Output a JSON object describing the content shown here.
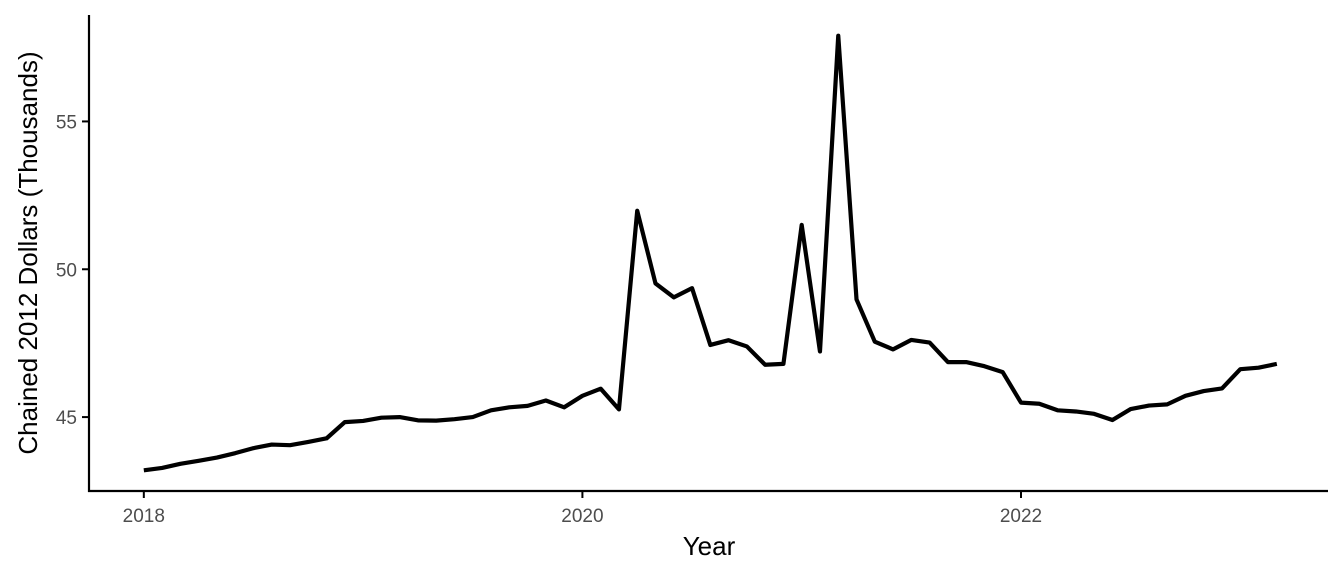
{
  "chart_data": {
    "type": "line",
    "title": "",
    "xlabel": "Year",
    "ylabel": "Chained 2012 Dollars (Thousands)",
    "x_ticks": [
      {
        "value": 2018,
        "label": "2018"
      },
      {
        "value": 2020,
        "label": "2020"
      },
      {
        "value": 2022,
        "label": "2022"
      }
    ],
    "y_ticks": [
      {
        "value": 45,
        "label": "45"
      },
      {
        "value": 50,
        "label": "50"
      },
      {
        "value": 55,
        "label": "55"
      }
    ],
    "xlim": [
      2017.75,
      2023.4
    ],
    "ylim": [
      42.5,
      58.6
    ],
    "grid": false,
    "legend": "none",
    "line_color": "#000000",
    "series": [
      {
        "x": [
          "2018-01",
          "2018-02",
          "2018-03",
          "2018-04",
          "2018-05",
          "2018-06",
          "2018-07",
          "2018-08",
          "2018-09",
          "2018-10",
          "2018-11",
          "2018-12",
          "2019-01",
          "2019-02",
          "2019-03",
          "2019-04",
          "2019-05",
          "2019-06",
          "2019-07",
          "2019-08",
          "2019-09",
          "2019-10",
          "2019-11",
          "2019-12",
          "2020-01",
          "2020-02",
          "2020-03",
          "2020-04",
          "2020-05",
          "2020-06",
          "2020-07",
          "2020-08",
          "2020-09",
          "2020-10",
          "2020-11",
          "2020-12",
          "2021-01",
          "2021-02",
          "2021-03",
          "2021-04",
          "2021-05",
          "2021-06",
          "2021-07",
          "2021-08",
          "2021-09",
          "2021-10",
          "2021-11",
          "2021-12",
          "2022-01",
          "2022-02",
          "2022-03",
          "2022-04",
          "2022-05",
          "2022-06",
          "2022-07",
          "2022-08",
          "2022-09",
          "2022-10",
          "2022-11",
          "2022-12",
          "2023-01",
          "2023-02",
          "2023-03"
        ],
        "values": [
          43.2,
          43.28,
          43.42,
          43.52,
          43.63,
          43.78,
          43.95,
          44.07,
          44.05,
          44.16,
          44.28,
          44.83,
          44.87,
          44.98,
          45.0,
          44.89,
          44.88,
          44.93,
          45.0,
          45.23,
          45.33,
          45.38,
          45.56,
          45.33,
          45.72,
          45.96,
          45.26,
          51.98,
          49.52,
          49.05,
          49.36,
          47.44,
          47.6,
          47.39,
          46.77,
          46.8,
          51.5,
          47.22,
          57.9,
          48.98,
          47.55,
          47.29,
          47.61,
          47.52,
          46.86,
          46.86,
          46.72,
          46.52,
          45.49,
          45.45,
          45.23,
          45.19,
          45.11,
          44.9,
          45.27,
          45.39,
          45.43,
          45.72,
          45.88,
          45.97,
          46.62,
          46.67,
          46.8
        ]
      }
    ]
  }
}
